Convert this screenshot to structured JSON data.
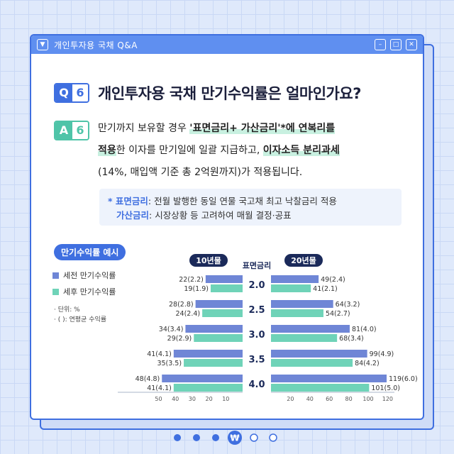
{
  "window": {
    "title": "개인투자용 국채 Q&A"
  },
  "question": {
    "badge_letter": "Q",
    "badge_number": "6",
    "text": "개인투자용 국채 만기수익률은 얼마인가요?"
  },
  "answer": {
    "badge_letter": "A",
    "badge_number": "6",
    "line1_a": "만기까지 보유할 경우 ",
    "line1_hl": "'표면금리+ 가산금리'*에 연복리를",
    "line2_hl_a": "적용",
    "line2_b": "한 이자를 만기일에 일괄 지급하고, ",
    "line2_hl_b": "이자소득 분리과세",
    "line3": "(14%, 매입액 기준 총 2억원까지)가 적용됩니다."
  },
  "note": {
    "line1_key": "* 표면금리",
    "line1_val": ": 전월 발행한 동일 연물 국고채 최고 낙찰금리 적용",
    "line2_key": "가산금리",
    "line2_val": ": 시장상황 등 고려하여 매월 결정·공표"
  },
  "section_label": "만기수익률 예시",
  "legend": {
    "pre_tax": "세전 만기수익률",
    "post_tax": "세후 만기수익률",
    "unit": "· 단위: %",
    "paren": "· (    ): 연평균 수익률"
  },
  "colors": {
    "primary": "#3f6fe0",
    "pre_tax": "#6f86d6",
    "post_tax": "#6fd3b8",
    "accent": "#4fc4a8"
  },
  "chart_data": {
    "type": "bar",
    "categories": [
      "2.0",
      "2.5",
      "3.0",
      "3.5",
      "4.0"
    ],
    "center_label": "표면금리",
    "left_panel": {
      "label": "10년물",
      "axis_ticks": [
        50,
        40,
        30,
        20,
        10
      ],
      "xlim": [
        0,
        50
      ],
      "series": [
        {
          "name": "세전 만기수익률",
          "values": [
            22,
            28,
            34,
            41,
            48
          ],
          "labels": [
            "22(2.2)",
            "28(2.8)",
            "34(3.4)",
            "41(4.1)",
            "48(4.8)"
          ]
        },
        {
          "name": "세후 만기수익률",
          "values": [
            19,
            24,
            29,
            35,
            41
          ],
          "labels": [
            "19(1.9)",
            "24(2.4)",
            "29(2.9)",
            "35(3.5)",
            "41(4.1)"
          ]
        }
      ]
    },
    "right_panel": {
      "label": "20년물",
      "axis_ticks": [
        20,
        40,
        60,
        80,
        100,
        120
      ],
      "xlim": [
        0,
        120
      ],
      "series": [
        {
          "name": "세전 만기수익률",
          "values": [
            49,
            64,
            81,
            99,
            119
          ],
          "labels": [
            "49(2.4)",
            "64(3.2)",
            "81(4.0)",
            "99(4.9)",
            "119(6.0)"
          ]
        },
        {
          "name": "세후 만기수익률",
          "values": [
            41,
            54,
            68,
            84,
            101
          ],
          "labels": [
            "41(2.1)",
            "54(2.7)",
            "68(3.4)",
            "84(4.2)",
            "101(5.0)"
          ]
        }
      ]
    }
  },
  "pagination": {
    "total": 6,
    "current": 4,
    "current_icon": "₩"
  }
}
